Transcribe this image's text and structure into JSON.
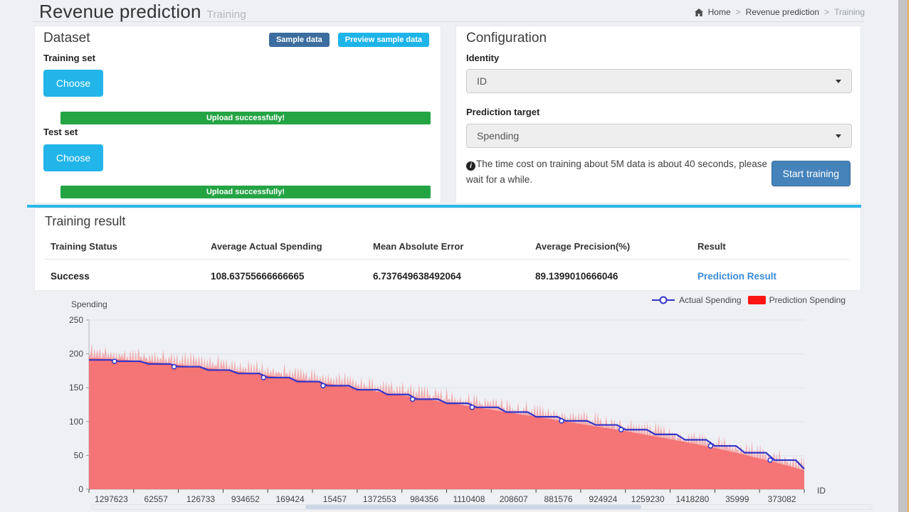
{
  "header": {
    "title": "Revenue prediction",
    "subtitle": "Training",
    "breadcrumb": {
      "home": "Home",
      "section": "Revenue prediction",
      "current": "Training",
      "separator": ">"
    }
  },
  "dataset": {
    "title": "Dataset",
    "sample_data_button": "Sample data",
    "preview_sample_button": "Preview sample data",
    "training_set_label": "Training set",
    "test_set_label": "Test set",
    "choose_button": "Choose",
    "upload_status_training": "Upload successfully!",
    "upload_status_test": "Upload successfully!"
  },
  "configuration": {
    "title": "Configuration",
    "identity_label": "Identity",
    "identity_value": "ID",
    "prediction_target_label": "Prediction target",
    "prediction_target_value": "Spending",
    "info_icon": "circle-info-icon",
    "info_text": "The time cost on training about 5M data is about 40 seconds, please wait for a while.",
    "start_button": "Start training"
  },
  "training_result": {
    "title": "Training result",
    "columns": [
      "Training Status",
      "Average Actual Spending",
      "Mean Absolute Error",
      "Average Precision(%)",
      "Result"
    ],
    "row": {
      "status": "Success",
      "avg_actual_spending": "108.63755666666665",
      "mean_absolute_error": "6.737649638492064",
      "avg_precision": "89.1399010666046",
      "result_link": "Prediction Result"
    }
  },
  "chart_data": {
    "type": "line",
    "title": "",
    "xlabel": "ID",
    "ylabel": "Spending",
    "ylim": [
      0,
      250
    ],
    "y_ticks": [
      0,
      50,
      100,
      150,
      200,
      250
    ],
    "x_tick_labels": [
      "1297623",
      "62557",
      "126733",
      "934652",
      "169424",
      "15457",
      "1372553",
      "984356",
      "1110408",
      "208607",
      "881576",
      "924924",
      "1259230",
      "1418280",
      "35999",
      "373082"
    ],
    "grid": true,
    "legend_position": "top-right",
    "sampling_note": "values are evenly-spaced downsampled reads across the x-range; actual line is stepped, prediction is a noisy red band filled to 0",
    "series": [
      {
        "name": "Actual Spending",
        "type": "line",
        "style": "stepped",
        "color": "#3434c8",
        "marker": "open-circle",
        "values_sampled": [
          191,
          189,
          185,
          181,
          176,
          171,
          165,
          159,
          153,
          147,
          140,
          133,
          127,
          121,
          114,
          107,
          101,
          95,
          88,
          81,
          73,
          64,
          54,
          43,
          30
        ]
      },
      {
        "name": "Prediction Spending",
        "type": "area",
        "color": "#f56c6c",
        "legend_swatch_color": "#fa1414",
        "fill_to": 0,
        "values_sampled": [
          204,
          202,
          198,
          194,
          189,
          184,
          178,
          172,
          166,
          159,
          152,
          145,
          138,
          131,
          124,
          117,
          110,
          103,
          96,
          88,
          80,
          71,
          61,
          50,
          38
        ]
      }
    ]
  },
  "colors": {
    "accent_cyan": "#29b8e8",
    "button_cyan": "#22b5e9",
    "button_steel_dark": "#3c6d9e",
    "button_primary": "#4583ba",
    "success_green": "#25a444",
    "link_blue": "#3a8bd8",
    "area_red": "#f56c6c",
    "legend_red": "#fa1414",
    "line_blue": "#3434c8"
  }
}
